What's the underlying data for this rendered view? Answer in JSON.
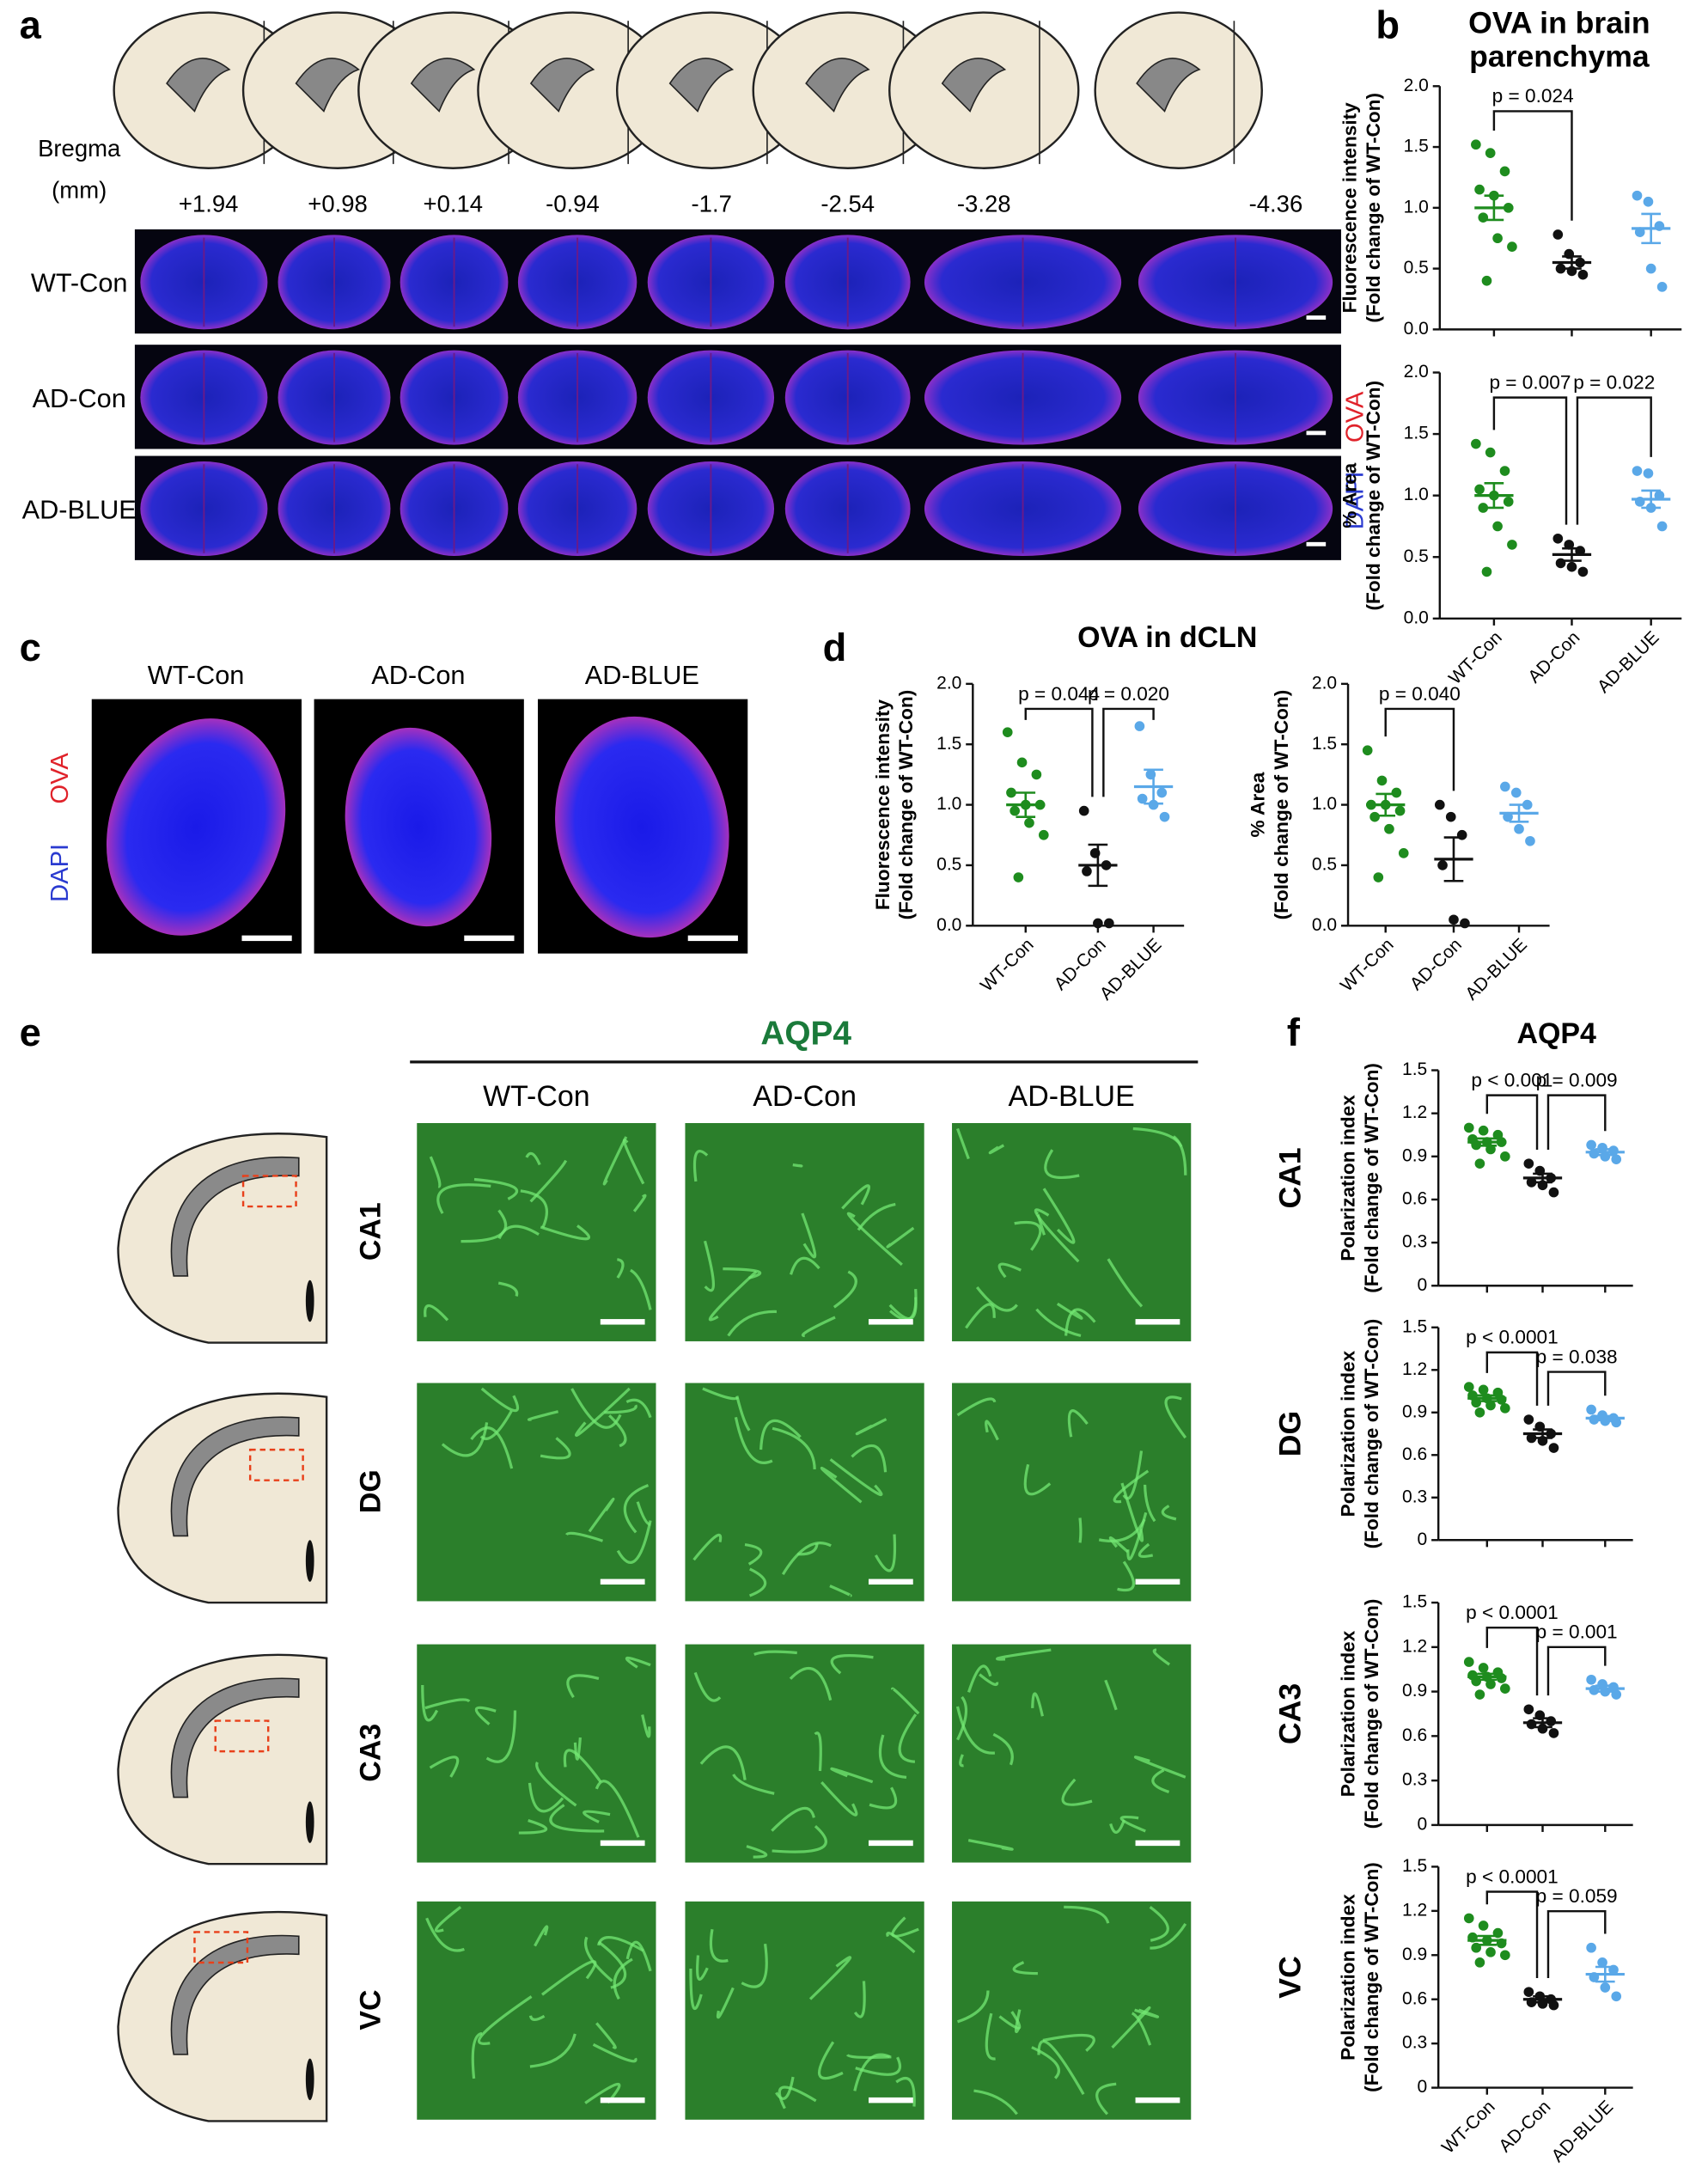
{
  "panels": {
    "a": "a",
    "b": "b",
    "c": "c",
    "d": "d",
    "e": "e",
    "f": "f"
  },
  "panel_a": {
    "bregma_label": "Bregma",
    "unit": "(mm)",
    "bregma": [
      "+1.94",
      "+0.98",
      "+0.14",
      "-0.94",
      "-1.7",
      "-2.54",
      "-3.28",
      "-4.36"
    ],
    "rows": [
      "WT-Con",
      "AD-Con",
      "AD-BLUE"
    ],
    "stain": [
      "OVA",
      "DAPI"
    ]
  },
  "panel_b": {
    "title": [
      "OVA in brain",
      "parenchyma"
    ]
  },
  "panel_c": {
    "columns": [
      "WT-Con",
      "AD-Con",
      "AD-BLUE"
    ],
    "stain": [
      "OVA",
      "DAPI"
    ]
  },
  "panel_d": {
    "title": "OVA  in  dCLN"
  },
  "panel_e": {
    "title": "AQP4",
    "columns": [
      "WT-Con",
      "AD-Con",
      "AD-BLUE"
    ],
    "regions": [
      "CA1",
      "DG",
      "CA3",
      "VC"
    ]
  },
  "panel_f": {
    "title": "AQP4"
  },
  "chart_data": [
    {
      "type": "strip",
      "ylabel": [
        "Fluorescence intensity",
        "(Fold change of WT-Con)"
      ],
      "ylim": [
        0,
        2
      ],
      "yticks": [
        {
          "value": 0,
          "label": "0.0"
        },
        0.5,
        {
          "value": 1,
          "label": "1.0"
        },
        1.5,
        {
          "value": 2,
          "label": "2.0"
        }
      ],
      "groups": [
        {
          "color": "#1e8c1e",
          "values": [
            1.52,
            1.45,
            1.3,
            1.15,
            1.1,
            1.0,
            0.92,
            0.75,
            0.68,
            0.4
          ],
          "mean": 1.0,
          "sem": 0.1
        },
        {
          "color": "#111111",
          "values": [
            0.78,
            0.62,
            0.55,
            0.5,
            0.48,
            0.45
          ],
          "mean": 0.55,
          "sem": 0.05
        },
        {
          "color": "#5aa8e8",
          "values": [
            1.1,
            1.05,
            0.85,
            0.8,
            0.5,
            0.35
          ],
          "mean": 0.83,
          "sem": 0.12
        }
      ],
      "annotations": [
        {
          "text": "p = 0.024",
          "between": [
            0,
            1
          ]
        }
      ]
    },
    {
      "type": "strip",
      "ylabel": [
        "% Area",
        "(Fold change of WT-Con)"
      ],
      "ylim": [
        0,
        2
      ],
      "yticks": [
        {
          "value": 0,
          "label": "0.0"
        },
        0.5,
        {
          "value": 1,
          "label": "1.0"
        },
        1.5,
        {
          "value": 2,
          "label": "2.0"
        }
      ],
      "categories": [
        "WT-Con",
        "AD-Con",
        "AD-BLUE"
      ],
      "groups": [
        {
          "color": "#1e8c1e",
          "values": [
            1.42,
            1.35,
            1.2,
            1.05,
            1.0,
            0.95,
            0.9,
            0.75,
            0.6,
            0.38
          ],
          "mean": 1.0,
          "sem": 0.1
        },
        {
          "color": "#111111",
          "values": [
            0.65,
            0.6,
            0.55,
            0.45,
            0.42,
            0.38
          ],
          "mean": 0.52,
          "sem": 0.05
        },
        {
          "color": "#5aa8e8",
          "values": [
            1.2,
            1.18,
            1.0,
            0.95,
            0.9,
            0.75
          ],
          "mean": 0.97,
          "sem": 0.07
        }
      ],
      "annotations": [
        {
          "text": "p = 0.007",
          "between": [
            0,
            1
          ]
        },
        {
          "text": "p = 0.022",
          "between": [
            1,
            2
          ]
        }
      ]
    },
    {
      "type": "strip",
      "ylabel": [
        "Fluorescence intensity",
        "(Fold change of WT-Con)"
      ],
      "ylim": [
        0,
        2
      ],
      "yticks": [
        {
          "value": 0,
          "label": "0.0"
        },
        0.5,
        {
          "value": 1,
          "label": "1.0"
        },
        1.5,
        {
          "value": 2,
          "label": "2.0"
        }
      ],
      "categories": [
        "WT-Con",
        "AD-Con",
        "AD-BLUE"
      ],
      "groups": [
        {
          "color": "#1e8c1e",
          "values": [
            1.6,
            1.35,
            1.25,
            1.1,
            1.0,
            1.0,
            0.95,
            0.85,
            0.75,
            0.4
          ],
          "mean": 1.0,
          "sem": 0.1
        },
        {
          "color": "#111111",
          "values": [
            0.95,
            0.6,
            0.5,
            0.45,
            0.02,
            0.02
          ],
          "mean": 0.5,
          "sem": 0.17
        },
        {
          "color": "#5aa8e8",
          "values": [
            1.65,
            1.25,
            1.1,
            1.05,
            1.0,
            0.9
          ],
          "mean": 1.15,
          "sem": 0.14
        }
      ],
      "annotations": [
        {
          "text": "p = 0.044",
          "between": [
            0,
            1
          ]
        },
        {
          "text": "p = 0.020",
          "between": [
            1,
            2
          ]
        }
      ]
    },
    {
      "type": "strip",
      "ylabel": [
        "% Area",
        "(Fold change of WT-Con)"
      ],
      "ylim": [
        0,
        2
      ],
      "yticks": [
        {
          "value": 0,
          "label": "0.0"
        },
        0.5,
        {
          "value": 1,
          "label": "1.0"
        },
        1.5,
        {
          "value": 2,
          "label": "2.0"
        }
      ],
      "categories": [
        "WT-Con",
        "AD-Con",
        "AD-BLUE"
      ],
      "groups": [
        {
          "color": "#1e8c1e",
          "values": [
            1.45,
            1.2,
            1.1,
            1.0,
            1.0,
            0.95,
            0.9,
            0.8,
            0.6,
            0.4
          ],
          "mean": 1.0,
          "sem": 0.09
        },
        {
          "color": "#111111",
          "values": [
            1.0,
            0.9,
            0.75,
            0.5,
            0.05,
            0.02
          ],
          "mean": 0.55,
          "sem": 0.18
        },
        {
          "color": "#5aa8e8",
          "values": [
            1.15,
            1.1,
            1.0,
            0.9,
            0.8,
            0.7
          ],
          "mean": 0.93,
          "sem": 0.07
        }
      ],
      "annotations": [
        {
          "text": "p = 0.040",
          "between": [
            0,
            1
          ]
        }
      ]
    },
    {
      "type": "strip",
      "title": "CA1",
      "ylabel": [
        "Polarization index",
        "(Fold change of WT-Con)"
      ],
      "ylim": [
        0,
        1.5
      ],
      "yticks": [
        0,
        0.3,
        0.6,
        0.9,
        1.2,
        1.5
      ],
      "groups": [
        {
          "color": "#1e8c1e",
          "values": [
            1.1,
            1.08,
            1.05,
            1.02,
            1.0,
            1.0,
            0.98,
            0.95,
            0.9,
            0.85
          ],
          "mean": 1.0,
          "sem": 0.025
        },
        {
          "color": "#111111",
          "values": [
            0.85,
            0.8,
            0.75,
            0.72,
            0.7,
            0.65
          ],
          "mean": 0.75,
          "sem": 0.03
        },
        {
          "color": "#5aa8e8",
          "values": [
            0.98,
            0.96,
            0.94,
            0.92,
            0.9,
            0.88
          ],
          "mean": 0.93,
          "sem": 0.02
        }
      ],
      "annotations": [
        {
          "text": "p < 0.001",
          "between": [
            0,
            1
          ]
        },
        {
          "text": "p = 0.009",
          "between": [
            1,
            2
          ]
        }
      ]
    },
    {
      "type": "strip",
      "title": "DG",
      "ylabel": [
        "Polarization index",
        "(Fold change of WT-Con)"
      ],
      "ylim": [
        0,
        1.5
      ],
      "yticks": [
        0,
        0.3,
        0.6,
        0.9,
        1.2,
        1.5
      ],
      "groups": [
        {
          "color": "#1e8c1e",
          "values": [
            1.08,
            1.06,
            1.04,
            1.02,
            1.0,
            0.99,
            0.97,
            0.95,
            0.93,
            0.9
          ],
          "mean": 1.0,
          "sem": 0.02
        },
        {
          "color": "#111111",
          "values": [
            0.85,
            0.8,
            0.75,
            0.72,
            0.7,
            0.65
          ],
          "mean": 0.75,
          "sem": 0.03
        },
        {
          "color": "#5aa8e8",
          "values": [
            0.92,
            0.88,
            0.86,
            0.85,
            0.84,
            0.83
          ],
          "mean": 0.86,
          "sem": 0.015
        }
      ],
      "annotations": [
        {
          "text": "p < 0.0001",
          "between": [
            0,
            1
          ]
        },
        {
          "text": "p = 0.038",
          "between": [
            1,
            2
          ]
        }
      ]
    },
    {
      "type": "strip",
      "title": "CA3",
      "ylabel": [
        "Polarization index",
        "(Fold change of WT-Con)"
      ],
      "ylim": [
        0,
        1.5
      ],
      "yticks": [
        0,
        0.3,
        0.6,
        0.9,
        1.2,
        1.5
      ],
      "groups": [
        {
          "color": "#1e8c1e",
          "values": [
            1.1,
            1.06,
            1.03,
            1.01,
            1.0,
            0.99,
            0.97,
            0.95,
            0.92,
            0.88
          ],
          "mean": 1.0,
          "sem": 0.02
        },
        {
          "color": "#111111",
          "values": [
            0.78,
            0.74,
            0.7,
            0.68,
            0.65,
            0.62
          ],
          "mean": 0.69,
          "sem": 0.03
        },
        {
          "color": "#5aa8e8",
          "values": [
            0.98,
            0.95,
            0.93,
            0.91,
            0.9,
            0.88
          ],
          "mean": 0.92,
          "sem": 0.02
        }
      ],
      "annotations": [
        {
          "text": "p < 0.0001",
          "between": [
            0,
            1
          ]
        },
        {
          "text": "p = 0.001",
          "between": [
            1,
            2
          ]
        }
      ]
    },
    {
      "type": "strip",
      "title": "VC",
      "ylabel": [
        "Polarization index",
        "(Fold change of WT-Con)"
      ],
      "ylim": [
        0,
        1.5
      ],
      "yticks": [
        0,
        0.3,
        0.6,
        0.9,
        1.2,
        1.5
      ],
      "categories": [
        "WT-Con",
        "AD-Con",
        "AD-BLUE"
      ],
      "groups": [
        {
          "color": "#1e8c1e",
          "values": [
            1.15,
            1.1,
            1.05,
            1.02,
            1.0,
            0.98,
            0.95,
            0.92,
            0.9,
            0.85
          ],
          "mean": 1.0,
          "sem": 0.03
        },
        {
          "color": "#111111",
          "values": [
            0.65,
            0.62,
            0.6,
            0.58,
            0.57,
            0.56
          ],
          "mean": 0.6,
          "sem": 0.02
        },
        {
          "color": "#5aa8e8",
          "values": [
            0.95,
            0.85,
            0.8,
            0.75,
            0.68,
            0.62
          ],
          "mean": 0.77,
          "sem": 0.05
        }
      ],
      "annotations": [
        {
          "text": "p < 0.0001",
          "between": [
            0,
            1
          ]
        },
        {
          "text": "p = 0.059",
          "between": [
            1,
            2
          ]
        }
      ]
    }
  ]
}
